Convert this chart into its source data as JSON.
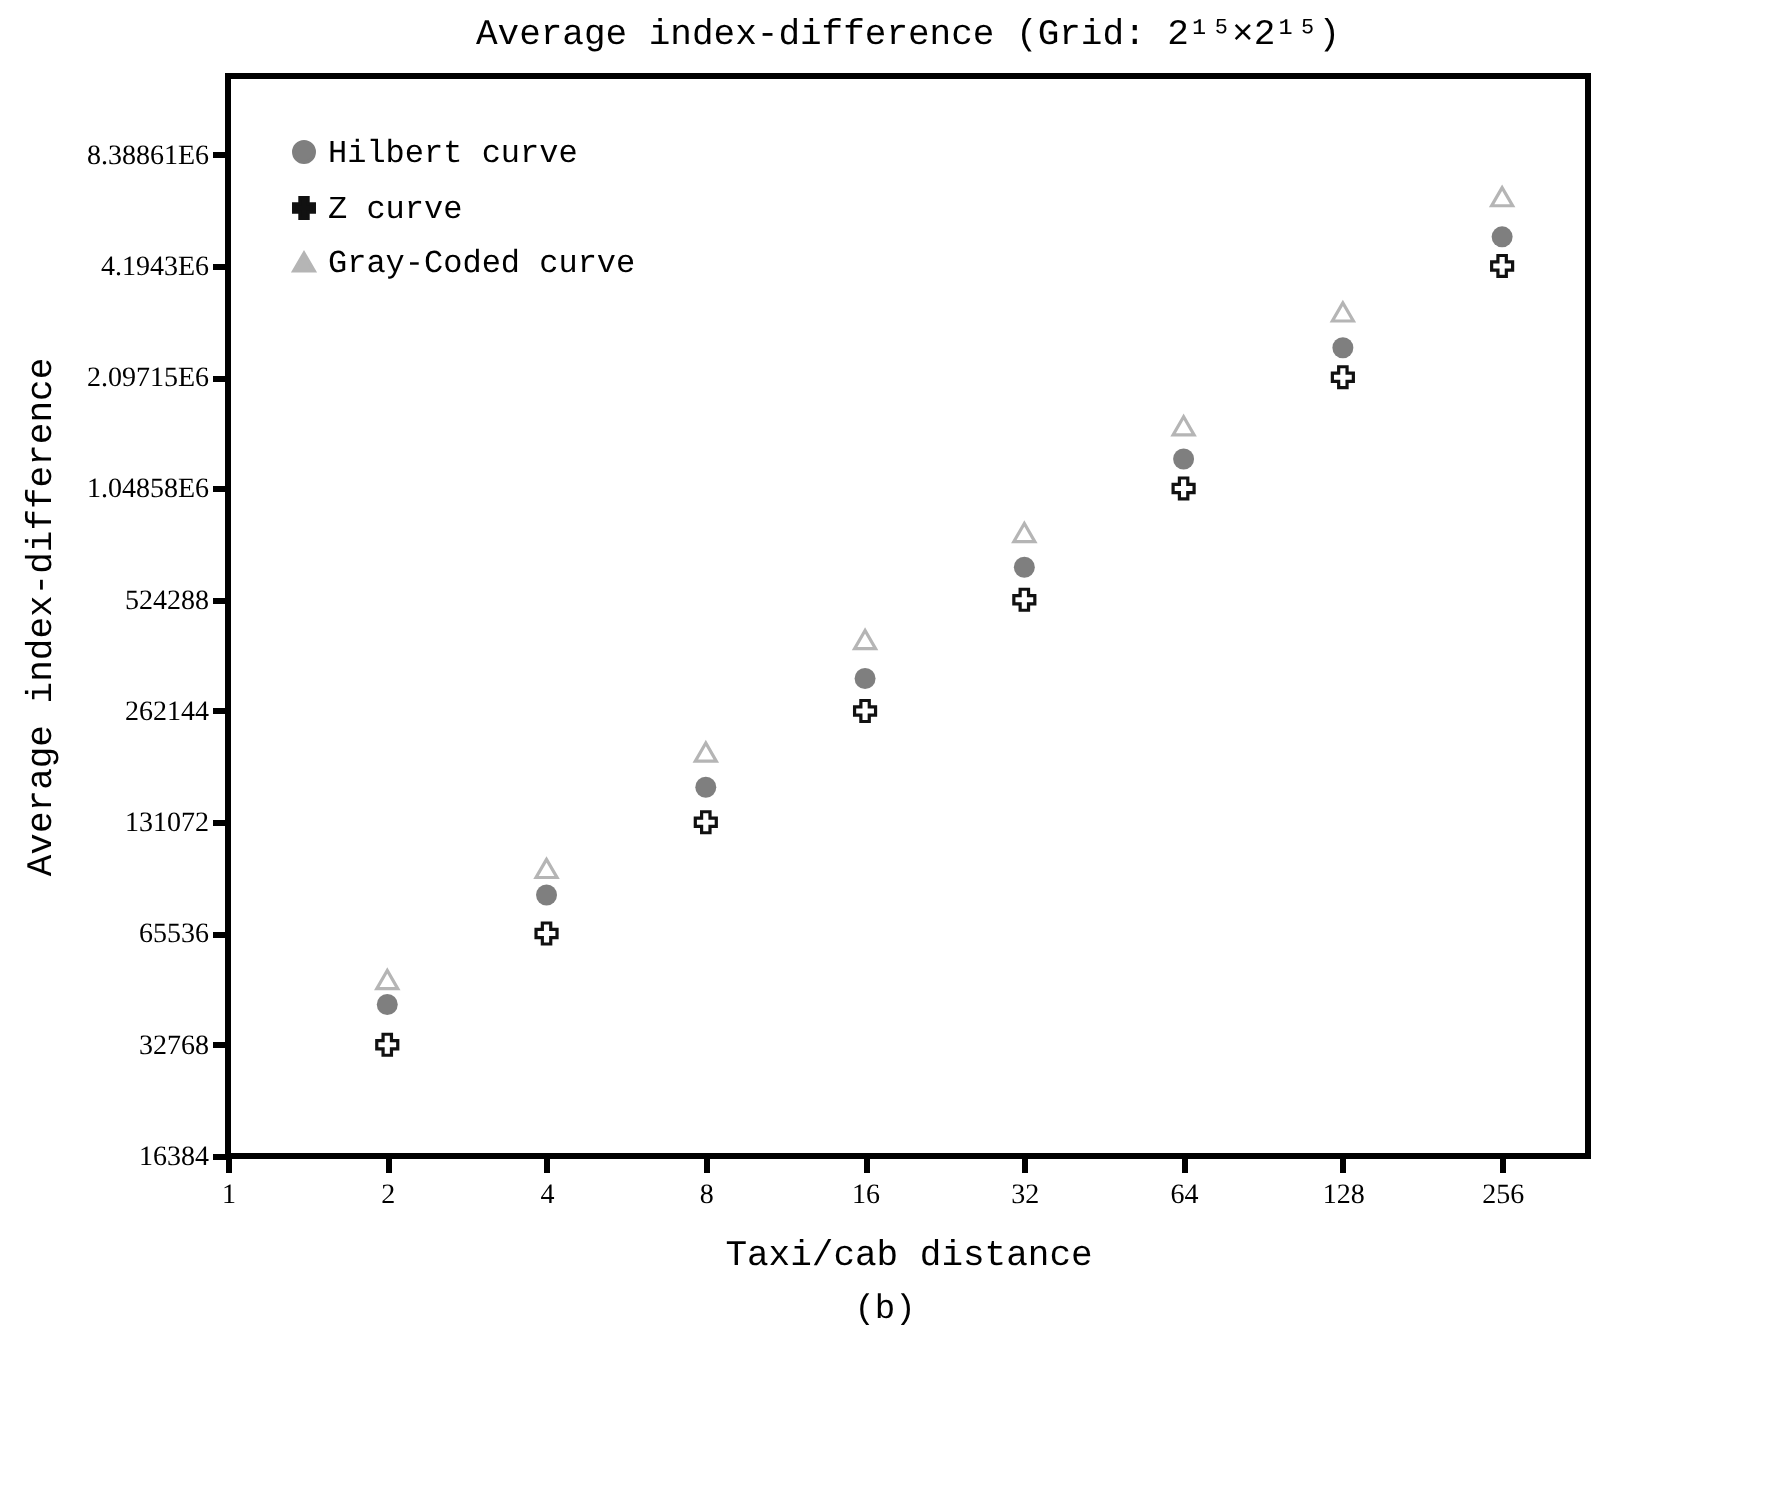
{
  "chart_data": {
    "type": "scatter",
    "title": "Average index-difference (Grid: 2¹⁵×2¹⁵)",
    "xlabel": "Taxi/cab distance",
    "ylabel": "Average index-difference",
    "annotations": [
      "(b)"
    ],
    "x": [
      2,
      4,
      8,
      16,
      32,
      64,
      128,
      256
    ],
    "series": [
      {
        "name": "Hilbert curve",
        "color": "#7f7f7f",
        "marker": "circle",
        "values": [
          42100,
          83300,
          163000,
          321000,
          642000,
          1260000,
          2520000,
          5030000
        ]
      },
      {
        "name": "Z curve",
        "color": "#111111",
        "marker": "cross",
        "values": [
          32768,
          65536,
          131072,
          262144,
          524288,
          1048576,
          2097152,
          4194304
        ]
      },
      {
        "name": "Gray-Coded curve",
        "color": "#b5b5b5",
        "marker": "triangle",
        "values": [
          49200,
          98300,
          203000,
          409000,
          797000,
          1550000,
          3150000,
          6460000
        ]
      }
    ],
    "log": "xy",
    "xlim": [
      1,
      372
    ],
    "xticks": [
      1,
      2,
      4,
      8,
      16,
      32,
      64,
      128,
      256
    ],
    "ylim": [
      16384,
      13700000
    ],
    "yticks": [
      16384,
      32768,
      65536,
      131072,
      262144,
      524288,
      {
        "value": 1048576,
        "label": "1.04858E6"
      },
      {
        "value": 2097152,
        "label": "2.09715E6"
      },
      {
        "value": 4194304,
        "label": "4.1943E6"
      },
      {
        "value": 8388608,
        "label": "8.38861E6"
      }
    ],
    "grid": false,
    "legend": "top left"
  }
}
